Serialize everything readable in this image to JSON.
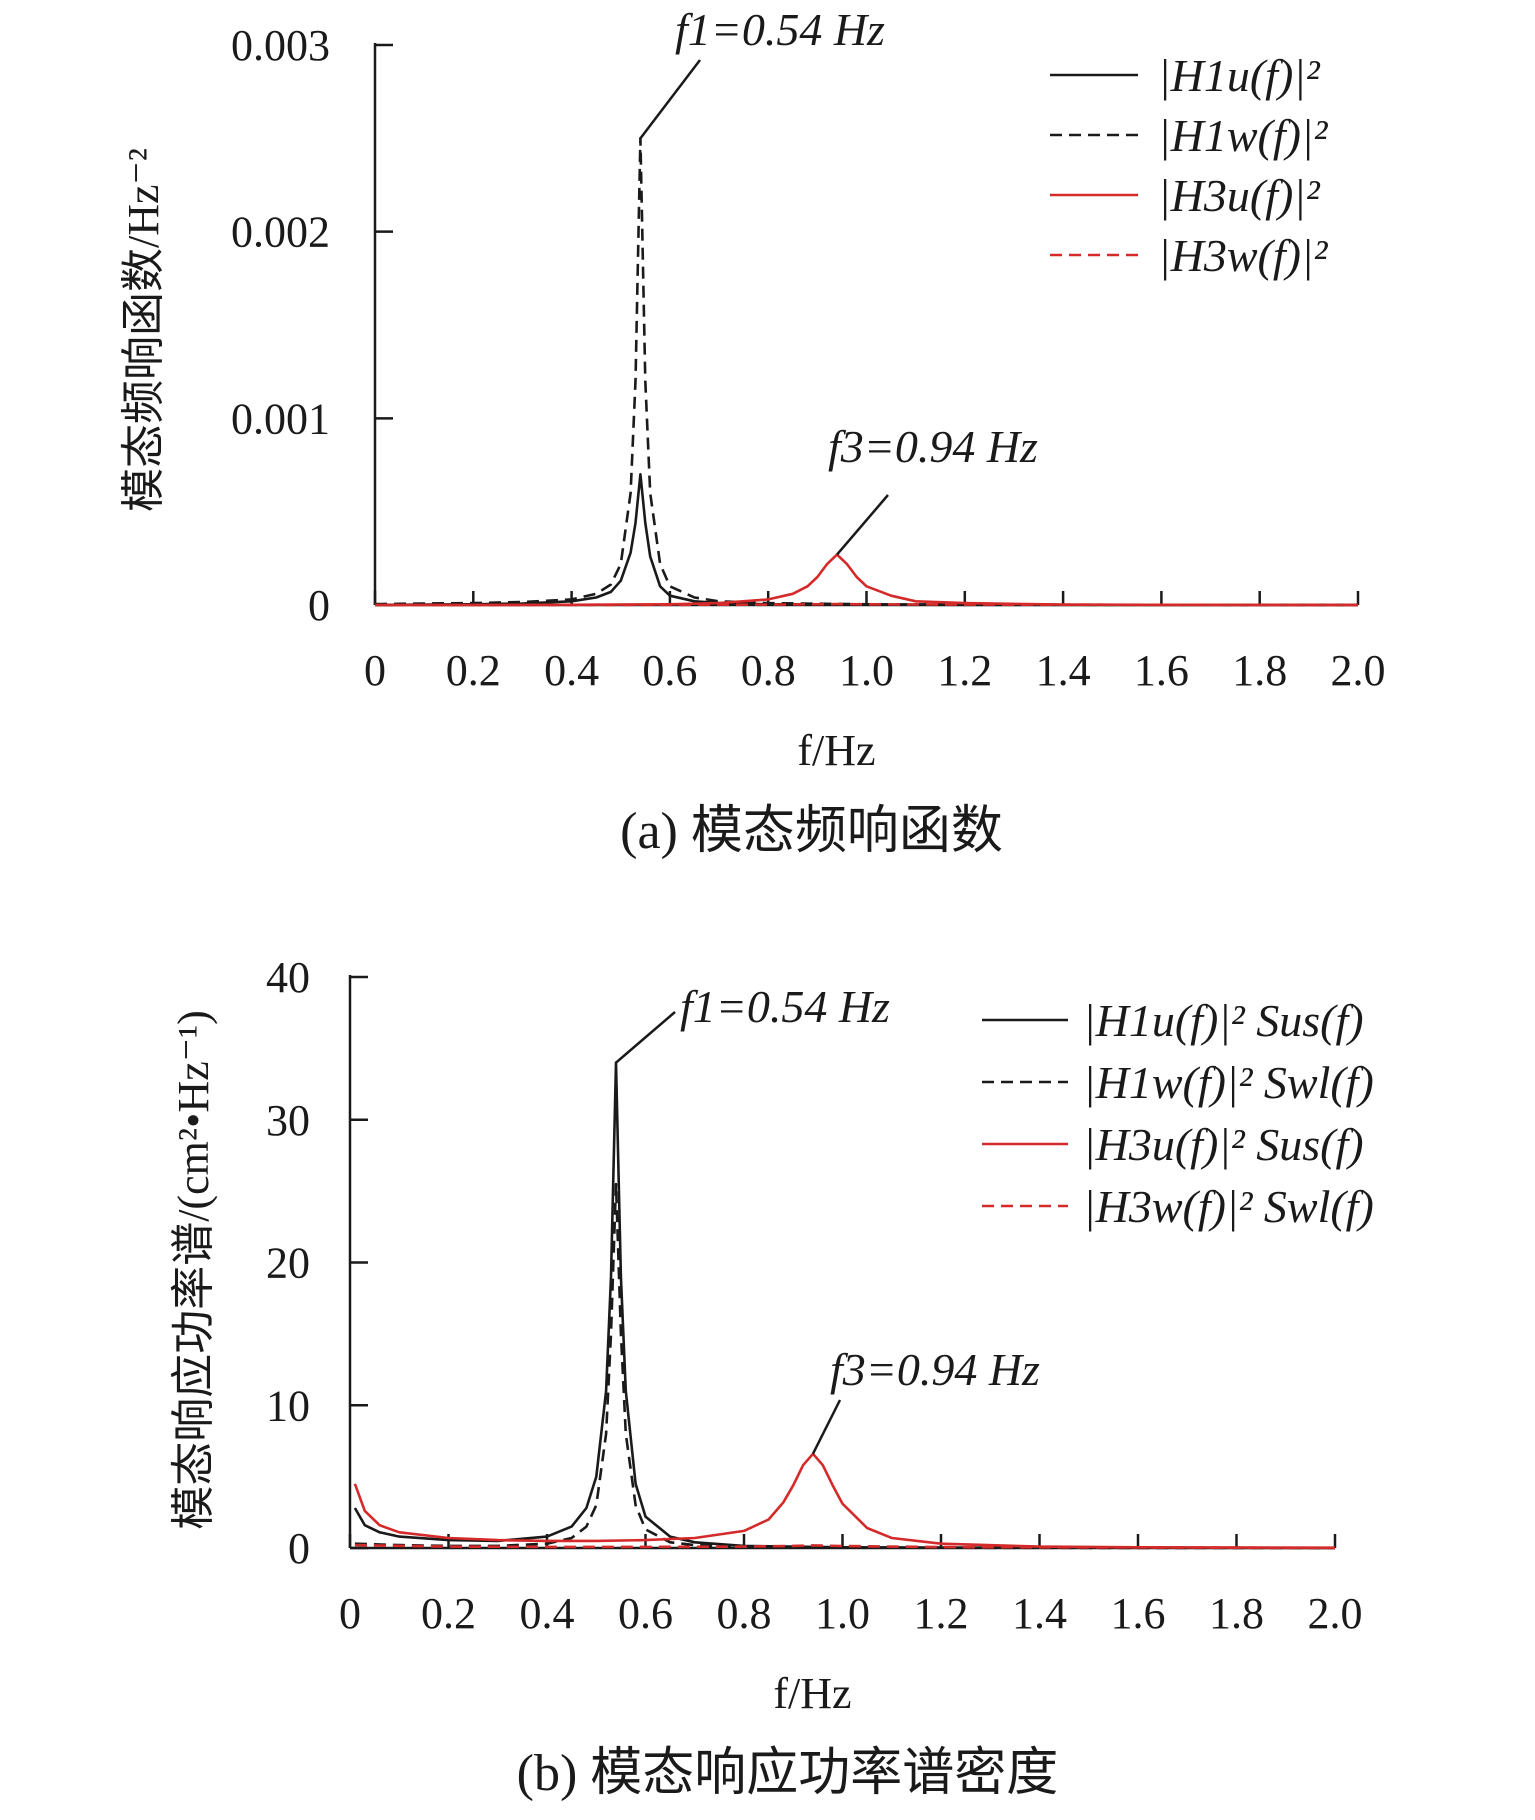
{
  "chart_data": [
    {
      "id": "a",
      "type": "line",
      "caption": "(a) 模态频响函数",
      "xlabel": "f/Hz",
      "ylabel": "模态频响函数/Hz⁻²",
      "xlim": [
        0,
        2.0
      ],
      "ylim": [
        0,
        0.003
      ],
      "xticks": [
        0,
        0.2,
        0.4,
        0.6,
        0.8,
        1.0,
        1.2,
        1.4,
        1.6,
        1.8,
        2.0
      ],
      "xtick_labels": [
        "0",
        "0.2",
        "0.4",
        "0.6",
        "0.8",
        "1.0",
        "1.2",
        "1.4",
        "1.6",
        "1.8",
        "2.0"
      ],
      "yticks": [
        0,
        0.001,
        0.002,
        0.003
      ],
      "ytick_labels": [
        "0",
        "0.001",
        "0.002",
        "0.003"
      ],
      "grid": false,
      "legend_position": "top-right",
      "series": [
        {
          "name": "|H1u(f)|²",
          "color": "#1a1a1a",
          "dash": "solid",
          "x": [
            0,
            0.1,
            0.2,
            0.3,
            0.4,
            0.45,
            0.48,
            0.5,
            0.52,
            0.53,
            0.54,
            0.55,
            0.56,
            0.58,
            0.6,
            0.65,
            0.7,
            0.8,
            1.0,
            1.2,
            1.5,
            2.0
          ],
          "y": [
            0,
            2e-06,
            4e-06,
            8e-06,
            2e-05,
            4e-05,
            7e-05,
            0.00013,
            0.00028,
            0.00044,
            0.0007,
            0.00044,
            0.00026,
            0.0001,
            5e-05,
            2e-05,
            1e-05,
            4e-06,
            2e-06,
            1e-06,
            1e-06,
            0
          ]
        },
        {
          "name": "|H1w(f)|²",
          "color": "#1a1a1a",
          "dash": "dashed",
          "x": [
            0,
            0.1,
            0.2,
            0.3,
            0.4,
            0.45,
            0.48,
            0.5,
            0.52,
            0.53,
            0.54,
            0.55,
            0.56,
            0.58,
            0.6,
            0.65,
            0.7,
            0.8,
            1.0,
            1.2,
            1.5,
            2.0
          ],
          "y": [
            5e-06,
            8e-06,
            1e-05,
            1.6e-05,
            3e-05,
            6e-05,
            0.00011,
            0.00022,
            0.0006,
            0.0012,
            0.0025,
            0.0012,
            0.0006,
            0.00022,
            0.0001,
            4e-05,
            2e-05,
            1e-05,
            4e-06,
            2e-06,
            1e-06,
            0
          ]
        },
        {
          "name": "|H3u(f)|²",
          "color": "#d42a2a",
          "dash": "solid",
          "x": [
            0,
            0.2,
            0.4,
            0.6,
            0.7,
            0.8,
            0.85,
            0.88,
            0.9,
            0.92,
            0.94,
            0.96,
            0.98,
            1.0,
            1.05,
            1.1,
            1.2,
            1.4,
            1.6,
            2.0
          ],
          "y": [
            0,
            0,
            1e-06,
            4e-06,
            1e-05,
            3e-05,
            6e-05,
            0.0001,
            0.00015,
            0.00022,
            0.00027,
            0.00022,
            0.00015,
            0.0001,
            5e-05,
            2e-05,
            1e-05,
            2e-06,
            1e-06,
            0
          ]
        },
        {
          "name": "|H3w(f)|²",
          "color": "#d42a2a",
          "dash": "dashed",
          "x": [
            0,
            0.4,
            0.8,
            0.9,
            0.94,
            1.0,
            1.2,
            2.0
          ],
          "y": [
            0,
            0,
            2e-06,
            4e-06,
            5e-06,
            4e-06,
            2e-06,
            0
          ]
        }
      ],
      "annotations": [
        {
          "text": "f1=0.54 Hz",
          "x": 0.54,
          "y": 0.0025
        },
        {
          "text": "f3=0.94 Hz",
          "x": 0.94,
          "y": 0.00027
        }
      ]
    },
    {
      "id": "b",
      "type": "line",
      "caption": "(b) 模态响应功率谱密度",
      "xlabel": "f/Hz",
      "ylabel": "模态响应功率谱/(cm²•Hz⁻¹)",
      "xlim": [
        0,
        2.0
      ],
      "ylim": [
        0,
        40
      ],
      "xticks": [
        0,
        0.2,
        0.4,
        0.6,
        0.8,
        1.0,
        1.2,
        1.4,
        1.6,
        1.8,
        2.0
      ],
      "xtick_labels": [
        "0",
        "0.2",
        "0.4",
        "0.6",
        "0.8",
        "1.0",
        "1.2",
        "1.4",
        "1.6",
        "1.8",
        "2.0"
      ],
      "yticks": [
        0,
        10,
        20,
        30,
        40
      ],
      "ytick_labels": [
        "0",
        "10",
        "20",
        "30",
        "40"
      ],
      "grid": false,
      "legend_position": "top-right",
      "series": [
        {
          "name": "|H1u(f)|² Sus(f)",
          "color": "#1a1a1a",
          "dash": "solid",
          "x": [
            0.01,
            0.03,
            0.06,
            0.1,
            0.2,
            0.3,
            0.4,
            0.45,
            0.48,
            0.5,
            0.52,
            0.53,
            0.54,
            0.55,
            0.56,
            0.58,
            0.6,
            0.65,
            0.7,
            0.8,
            1.0,
            1.2,
            1.5,
            2.0
          ],
          "y": [
            2.8,
            1.6,
            1.1,
            0.8,
            0.55,
            0.5,
            0.8,
            1.5,
            2.8,
            5.0,
            11,
            19,
            34,
            19,
            11,
            4.5,
            2.2,
            0.8,
            0.4,
            0.15,
            0.05,
            0.03,
            0.02,
            0.01
          ]
        },
        {
          "name": "|H1w(f)|² Swl(f)",
          "color": "#1a1a1a",
          "dash": "dashed",
          "x": [
            0.01,
            0.1,
            0.2,
            0.3,
            0.4,
            0.45,
            0.48,
            0.5,
            0.52,
            0.53,
            0.54,
            0.55,
            0.56,
            0.58,
            0.6,
            0.65,
            0.7,
            0.8,
            1.0,
            1.5,
            2.0
          ],
          "y": [
            0.3,
            0.2,
            0.15,
            0.15,
            0.3,
            0.7,
            1.5,
            3.0,
            8.0,
            15,
            25.5,
            15,
            8.0,
            3.0,
            1.3,
            0.4,
            0.2,
            0.08,
            0.03,
            0.01,
            0
          ]
        },
        {
          "name": "|H3u(f)|² Sus(f)",
          "color": "#d42a2a",
          "dash": "solid",
          "x": [
            0.01,
            0.03,
            0.06,
            0.1,
            0.2,
            0.3,
            0.4,
            0.5,
            0.6,
            0.7,
            0.8,
            0.85,
            0.88,
            0.9,
            0.92,
            0.94,
            0.96,
            0.98,
            1.0,
            1.05,
            1.1,
            1.2,
            1.4,
            1.6,
            2.0
          ],
          "y": [
            4.5,
            2.6,
            1.6,
            1.1,
            0.7,
            0.55,
            0.5,
            0.5,
            0.55,
            0.7,
            1.2,
            2.0,
            3.2,
            4.4,
            5.8,
            6.6,
            5.8,
            4.4,
            3.1,
            1.4,
            0.7,
            0.3,
            0.1,
            0.05,
            0.02
          ]
        },
        {
          "name": "|H3w(f)|² Swl(f)",
          "color": "#d42a2a",
          "dash": "dashed",
          "x": [
            0.01,
            0.2,
            0.4,
            0.6,
            0.8,
            0.9,
            0.94,
            1.0,
            1.2,
            2.0
          ],
          "y": [
            0.2,
            0.1,
            0.08,
            0.08,
            0.1,
            0.15,
            0.18,
            0.14,
            0.06,
            0.01
          ]
        }
      ],
      "annotations": [
        {
          "text": "f1=0.54 Hz",
          "x": 0.54,
          "y": 34
        },
        {
          "text": "f3=0.94 Hz",
          "x": 0.94,
          "y": 6.6
        }
      ]
    }
  ]
}
